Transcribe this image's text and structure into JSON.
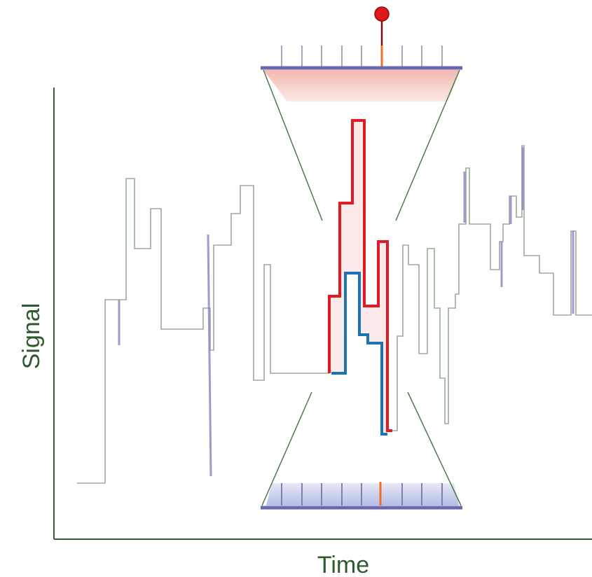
{
  "axes": {
    "x_label": "Time",
    "y_label": "Signal"
  }
}
